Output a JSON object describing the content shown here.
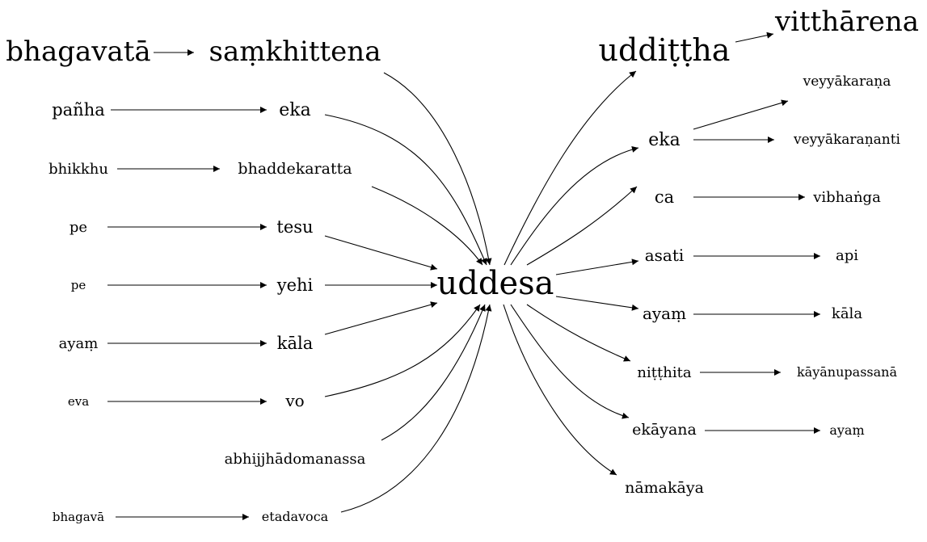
{
  "graph": {
    "center": "uddesa",
    "left_chains": [
      {
        "source": "bhagavatā",
        "target": "saṃkhittena"
      },
      {
        "source": "pañha",
        "target": "eka"
      },
      {
        "source": "bhikkhu",
        "target": "bhaddekaratta"
      },
      {
        "source": "pe",
        "target": "tesu"
      },
      {
        "source": "pe",
        "target": "yehi"
      },
      {
        "source": "ayaṃ",
        "target": "kāla"
      },
      {
        "source": "eva",
        "target": "vo"
      },
      {
        "source": "",
        "target": "abhijjhādomanassa"
      },
      {
        "source": "bhagavā",
        "target": "etadavoca"
      }
    ],
    "right_chains": [
      {
        "source": "uddiṭṭha",
        "targets": [
          "vitthārena"
        ]
      },
      {
        "source": "eka",
        "targets": [
          "veyyākaraṇa",
          "veyyākaraṇanti"
        ]
      },
      {
        "source": "ca",
        "targets": [
          "vibhaṅga"
        ]
      },
      {
        "source": "asati",
        "targets": [
          "api"
        ]
      },
      {
        "source": "ayaṃ",
        "targets": [
          "kāla"
        ]
      },
      {
        "source": "niṭṭhita",
        "targets": [
          "kāyānupassanā"
        ]
      },
      {
        "source": "ekāyana",
        "targets": [
          "ayaṃ"
        ]
      },
      {
        "source": "nāmakāya",
        "targets": []
      }
    ]
  }
}
